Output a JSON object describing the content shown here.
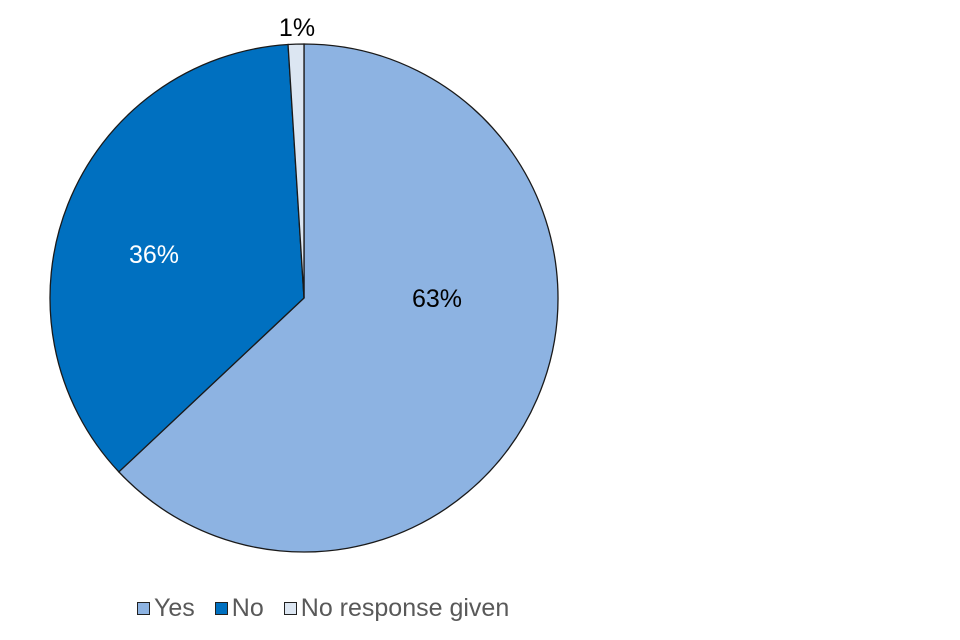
{
  "chart_data": {
    "type": "pie",
    "title": "",
    "slices": [
      {
        "label": "Yes",
        "value": 63,
        "display": "63%",
        "color": "#8DB3E2",
        "label_color": "#000000"
      },
      {
        "label": "No",
        "value": 36,
        "display": "36%",
        "color": "#0070C0",
        "label_color": "#FFFFFF"
      },
      {
        "label": "No response given",
        "value": 1,
        "display": "1%",
        "color": "#DCE6F2",
        "label_color": "#000000"
      }
    ],
    "start": "top",
    "direction": "clockwise",
    "legend_position": "bottom"
  }
}
